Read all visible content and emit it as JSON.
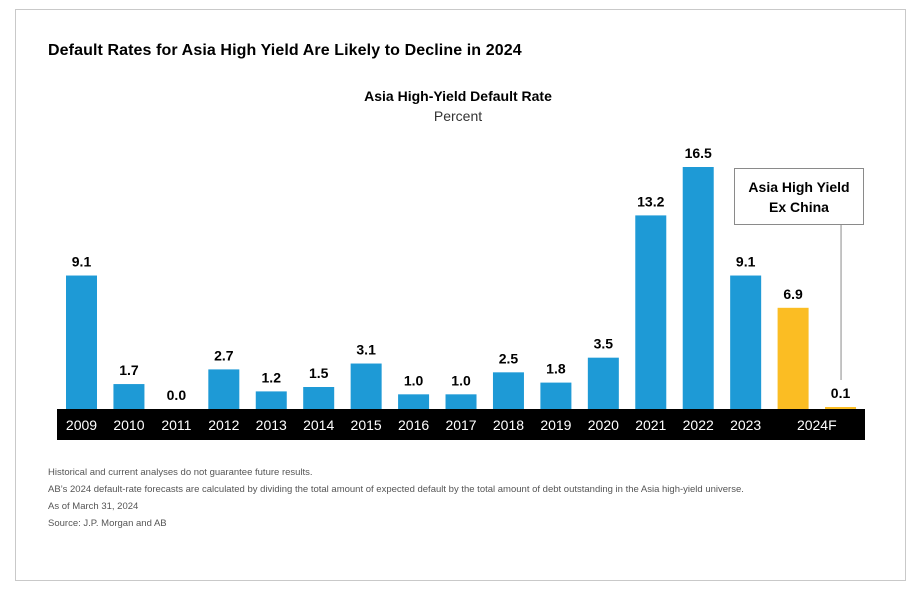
{
  "headline": "Default Rates for Asia High Yield Are Likely to Decline in 2024",
  "colors": {
    "actual": "#1e9ad6",
    "forecast": "#fbbd23",
    "axis_band": "#000000"
  },
  "chart_data": {
    "type": "bar",
    "title": "Asia High-Yield Default Rate",
    "subtitle": "Percent",
    "categories": [
      "2009",
      "2010",
      "2011",
      "2012",
      "2013",
      "2014",
      "2015",
      "2016",
      "2017",
      "2018",
      "2019",
      "2020",
      "2021",
      "2022",
      "2023",
      "2024F",
      "2024F"
    ],
    "values": [
      9.1,
      1.7,
      0.0,
      2.7,
      1.2,
      1.5,
      3.1,
      1.0,
      1.0,
      2.5,
      1.8,
      3.5,
      13.2,
      16.5,
      9.1,
      6.9,
      0.1
    ],
    "value_labels": [
      "9.1",
      "1.7",
      "0.0",
      "2.7",
      "1.2",
      "1.5",
      "3.1",
      "1.0",
      "1.0",
      "2.5",
      "1.8",
      "3.5",
      "13.2",
      "16.5",
      "9.1",
      "6.9",
      "0.1"
    ],
    "tick_labels": [
      "2009",
      "2010",
      "2011",
      "2012",
      "2013",
      "2014",
      "2015",
      "2016",
      "2017",
      "2018",
      "2019",
      "2020",
      "2021",
      "2022",
      "2023",
      "2024F"
    ],
    "bar_kinds": [
      "actual",
      "actual",
      "actual",
      "actual",
      "actual",
      "actual",
      "actual",
      "actual",
      "actual",
      "actual",
      "actual",
      "actual",
      "actual",
      "actual",
      "actual",
      "forecast",
      "forecast"
    ],
    "ylim": [
      0,
      16.5
    ],
    "grid": false,
    "legend": "none",
    "annotation": {
      "line1": "Asia High Yield",
      "line2": "Ex China",
      "points_to": "2024F"
    }
  },
  "notes": [
    "Historical and current analyses do not guarantee future results.",
    "AB’s 2024 default-rate forecasts are calculated by dividing the total amount of expected default by the total amount of debt outstanding in the Asia high-yield universe.",
    "As of March 31, 2024",
    "Source: J.P. Morgan and AB"
  ]
}
